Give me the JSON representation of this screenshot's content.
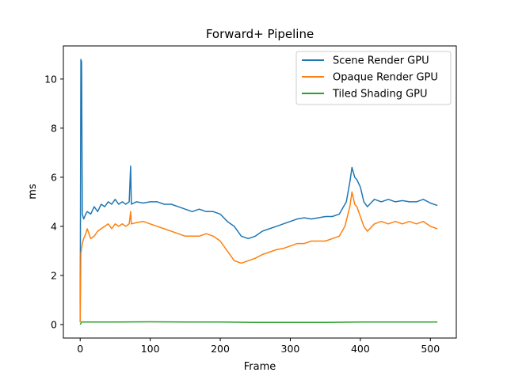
{
  "chart_data": {
    "type": "line",
    "title": "Forward+ Pipeline",
    "xlabel": "Frame",
    "ylabel": "ms",
    "xlim": [
      -24,
      537
    ],
    "ylim": [
      -0.55,
      11.35
    ],
    "xticks": [
      0,
      100,
      200,
      300,
      400,
      500
    ],
    "yticks": [
      0,
      2,
      4,
      6,
      8,
      10
    ],
    "grid": false,
    "legend_position": "top-right",
    "series": [
      {
        "name": "Scene Render GPU",
        "color": "#1f77b4",
        "points": [
          [
            0,
            0.1
          ],
          [
            1,
            10.8
          ],
          [
            2,
            10.7
          ],
          [
            3,
            4.5
          ],
          [
            5,
            4.3
          ],
          [
            8,
            4.5
          ],
          [
            10,
            4.6
          ],
          [
            15,
            4.5
          ],
          [
            20,
            4.8
          ],
          [
            25,
            4.6
          ],
          [
            30,
            4.9
          ],
          [
            35,
            4.8
          ],
          [
            40,
            5.0
          ],
          [
            45,
            4.9
          ],
          [
            50,
            5.1
          ],
          [
            55,
            4.9
          ],
          [
            60,
            5.0
          ],
          [
            65,
            4.9
          ],
          [
            70,
            5.0
          ],
          [
            72,
            6.45
          ],
          [
            73,
            4.9
          ],
          [
            80,
            5.0
          ],
          [
            90,
            4.95
          ],
          [
            100,
            5.0
          ],
          [
            110,
            5.0
          ],
          [
            120,
            4.9
          ],
          [
            130,
            4.9
          ],
          [
            140,
            4.8
          ],
          [
            150,
            4.7
          ],
          [
            160,
            4.6
          ],
          [
            170,
            4.7
          ],
          [
            180,
            4.6
          ],
          [
            190,
            4.6
          ],
          [
            200,
            4.5
          ],
          [
            210,
            4.2
          ],
          [
            220,
            4.0
          ],
          [
            230,
            3.6
          ],
          [
            240,
            3.5
          ],
          [
            250,
            3.6
          ],
          [
            260,
            3.8
          ],
          [
            270,
            3.9
          ],
          [
            280,
            4.0
          ],
          [
            290,
            4.1
          ],
          [
            300,
            4.2
          ],
          [
            310,
            4.3
          ],
          [
            320,
            4.35
          ],
          [
            330,
            4.3
          ],
          [
            340,
            4.35
          ],
          [
            350,
            4.4
          ],
          [
            360,
            4.4
          ],
          [
            370,
            4.5
          ],
          [
            380,
            5.0
          ],
          [
            385,
            5.8
          ],
          [
            388,
            6.4
          ],
          [
            392,
            6.0
          ],
          [
            395,
            5.9
          ],
          [
            400,
            5.6
          ],
          [
            405,
            5.0
          ],
          [
            410,
            4.8
          ],
          [
            420,
            5.1
          ],
          [
            430,
            5.0
          ],
          [
            440,
            5.1
          ],
          [
            450,
            5.0
          ],
          [
            460,
            5.05
          ],
          [
            470,
            5.0
          ],
          [
            480,
            5.0
          ],
          [
            490,
            5.1
          ],
          [
            500,
            4.95
          ],
          [
            510,
            4.85
          ]
        ]
      },
      {
        "name": "Opaque Render GPU",
        "color": "#ff7f0e",
        "points": [
          [
            0,
            0.1
          ],
          [
            1,
            2.9
          ],
          [
            3,
            3.3
          ],
          [
            5,
            3.5
          ],
          [
            8,
            3.7
          ],
          [
            10,
            3.9
          ],
          [
            15,
            3.5
          ],
          [
            20,
            3.6
          ],
          [
            25,
            3.8
          ],
          [
            30,
            3.9
          ],
          [
            35,
            4.0
          ],
          [
            40,
            4.1
          ],
          [
            45,
            3.9
          ],
          [
            50,
            4.1
          ],
          [
            55,
            4.0
          ],
          [
            60,
            4.1
          ],
          [
            65,
            4.0
          ],
          [
            70,
            4.1
          ],
          [
            72,
            4.6
          ],
          [
            73,
            4.1
          ],
          [
            80,
            4.15
          ],
          [
            90,
            4.2
          ],
          [
            100,
            4.1
          ],
          [
            110,
            4.0
          ],
          [
            120,
            3.9
          ],
          [
            130,
            3.8
          ],
          [
            140,
            3.7
          ],
          [
            150,
            3.6
          ],
          [
            160,
            3.6
          ],
          [
            170,
            3.6
          ],
          [
            180,
            3.7
          ],
          [
            190,
            3.6
          ],
          [
            200,
            3.4
          ],
          [
            210,
            3.0
          ],
          [
            220,
            2.6
          ],
          [
            230,
            2.5
          ],
          [
            240,
            2.6
          ],
          [
            250,
            2.7
          ],
          [
            260,
            2.85
          ],
          [
            270,
            2.95
          ],
          [
            280,
            3.05
          ],
          [
            290,
            3.1
          ],
          [
            300,
            3.2
          ],
          [
            310,
            3.3
          ],
          [
            320,
            3.3
          ],
          [
            330,
            3.4
          ],
          [
            340,
            3.4
          ],
          [
            350,
            3.4
          ],
          [
            360,
            3.5
          ],
          [
            370,
            3.6
          ],
          [
            378,
            4.0
          ],
          [
            385,
            4.8
          ],
          [
            388,
            5.4
          ],
          [
            392,
            4.9
          ],
          [
            395,
            4.8
          ],
          [
            400,
            4.4
          ],
          [
            405,
            4.0
          ],
          [
            410,
            3.8
          ],
          [
            420,
            4.1
          ],
          [
            430,
            4.2
          ],
          [
            440,
            4.1
          ],
          [
            450,
            4.2
          ],
          [
            460,
            4.1
          ],
          [
            470,
            4.2
          ],
          [
            480,
            4.1
          ],
          [
            490,
            4.2
          ],
          [
            500,
            4.0
          ],
          [
            510,
            3.9
          ]
        ]
      },
      {
        "name": "Tiled Shading GPU",
        "color": "#2ca02c",
        "points": [
          [
            0,
            0.0
          ],
          [
            2,
            0.1
          ],
          [
            50,
            0.1
          ],
          [
            100,
            0.11
          ],
          [
            150,
            0.1
          ],
          [
            200,
            0.1
          ],
          [
            250,
            0.09
          ],
          [
            300,
            0.09
          ],
          [
            350,
            0.09
          ],
          [
            400,
            0.1
          ],
          [
            450,
            0.1
          ],
          [
            510,
            0.1
          ]
        ]
      }
    ]
  }
}
